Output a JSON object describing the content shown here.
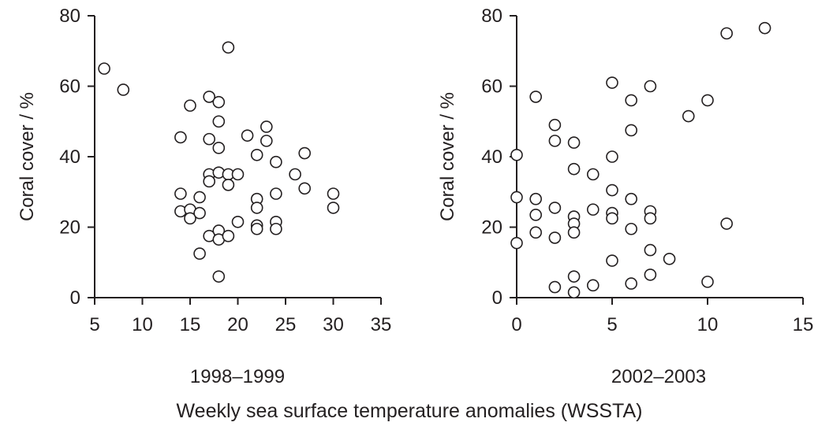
{
  "chart_data": [
    {
      "type": "scatter",
      "panel_label": "1998–1999",
      "ylabel": "Coral cover / %",
      "xlim": [
        5,
        35
      ],
      "ylim": [
        0,
        80
      ],
      "x_ticks": [
        5,
        10,
        15,
        20,
        25,
        30,
        35
      ],
      "y_ticks": [
        0,
        20,
        40,
        60,
        80
      ],
      "points": [
        {
          "x": 6,
          "y": 65
        },
        {
          "x": 8,
          "y": 59
        },
        {
          "x": 14,
          "y": 45.5
        },
        {
          "x": 14,
          "y": 29.5
        },
        {
          "x": 14,
          "y": 24.5
        },
        {
          "x": 15,
          "y": 54.5
        },
        {
          "x": 15,
          "y": 25
        },
        {
          "x": 15,
          "y": 22.5
        },
        {
          "x": 16,
          "y": 28.5
        },
        {
          "x": 16,
          "y": 24
        },
        {
          "x": 16,
          "y": 12.5
        },
        {
          "x": 17,
          "y": 57
        },
        {
          "x": 17,
          "y": 45
        },
        {
          "x": 17,
          "y": 35
        },
        {
          "x": 17,
          "y": 33
        },
        {
          "x": 17,
          "y": 17.5
        },
        {
          "x": 18,
          "y": 55.5
        },
        {
          "x": 18,
          "y": 50
        },
        {
          "x": 18,
          "y": 42.5
        },
        {
          "x": 18,
          "y": 35.5
        },
        {
          "x": 18,
          "y": 19
        },
        {
          "x": 18,
          "y": 16.5
        },
        {
          "x": 18,
          "y": 6
        },
        {
          "x": 19,
          "y": 71
        },
        {
          "x": 19,
          "y": 35
        },
        {
          "x": 19,
          "y": 32
        },
        {
          "x": 19,
          "y": 17.5
        },
        {
          "x": 20,
          "y": 35
        },
        {
          "x": 20,
          "y": 21.5
        },
        {
          "x": 21,
          "y": 46
        },
        {
          "x": 22,
          "y": 40.5
        },
        {
          "x": 22,
          "y": 28
        },
        {
          "x": 22,
          "y": 25.5
        },
        {
          "x": 22,
          "y": 20.5
        },
        {
          "x": 22,
          "y": 19.5
        },
        {
          "x": 23,
          "y": 48.5
        },
        {
          "x": 23,
          "y": 44.5
        },
        {
          "x": 24,
          "y": 38.5
        },
        {
          "x": 24,
          "y": 29.5
        },
        {
          "x": 24,
          "y": 21.5
        },
        {
          "x": 24,
          "y": 19.5
        },
        {
          "x": 26,
          "y": 35
        },
        {
          "x": 27,
          "y": 41
        },
        {
          "x": 27,
          "y": 31
        },
        {
          "x": 30,
          "y": 29.5
        },
        {
          "x": 30,
          "y": 25.5
        }
      ]
    },
    {
      "type": "scatter",
      "panel_label": "2002–2003",
      "ylabel": "Coral cover / %",
      "xlim": [
        0,
        15
      ],
      "ylim": [
        0,
        80
      ],
      "x_ticks": [
        0,
        5,
        10,
        15
      ],
      "y_ticks": [
        0,
        20,
        40,
        60,
        80
      ],
      "points": [
        {
          "x": 0,
          "y": 40.5
        },
        {
          "x": 0,
          "y": 28.5
        },
        {
          "x": 0,
          "y": 15.5
        },
        {
          "x": 1,
          "y": 57
        },
        {
          "x": 1,
          "y": 28
        },
        {
          "x": 1,
          "y": 23.5
        },
        {
          "x": 1,
          "y": 18.5
        },
        {
          "x": 2,
          "y": 49
        },
        {
          "x": 2,
          "y": 44.5
        },
        {
          "x": 2,
          "y": 25.5
        },
        {
          "x": 2,
          "y": 17
        },
        {
          "x": 2,
          "y": 3
        },
        {
          "x": 3,
          "y": 44
        },
        {
          "x": 3,
          "y": 36.5
        },
        {
          "x": 3,
          "y": 23
        },
        {
          "x": 3,
          "y": 21
        },
        {
          "x": 3,
          "y": 18.5
        },
        {
          "x": 3,
          "y": 6
        },
        {
          "x": 3,
          "y": 1.5
        },
        {
          "x": 4,
          "y": 35
        },
        {
          "x": 4,
          "y": 25
        },
        {
          "x": 4,
          "y": 3.5
        },
        {
          "x": 5,
          "y": 61
        },
        {
          "x": 5,
          "y": 40
        },
        {
          "x": 5,
          "y": 30.5
        },
        {
          "x": 5,
          "y": 24
        },
        {
          "x": 5,
          "y": 22.5
        },
        {
          "x": 5,
          "y": 10.5
        },
        {
          "x": 6,
          "y": 56
        },
        {
          "x": 6,
          "y": 47.5
        },
        {
          "x": 6,
          "y": 28
        },
        {
          "x": 6,
          "y": 19.5
        },
        {
          "x": 6,
          "y": 4
        },
        {
          "x": 7,
          "y": 60
        },
        {
          "x": 7,
          "y": 24.5
        },
        {
          "x": 7,
          "y": 22.5
        },
        {
          "x": 7,
          "y": 13.5
        },
        {
          "x": 7,
          "y": 6.5
        },
        {
          "x": 8,
          "y": 11
        },
        {
          "x": 9,
          "y": 51.5
        },
        {
          "x": 10,
          "y": 56
        },
        {
          "x": 10,
          "y": 4.5
        },
        {
          "x": 11,
          "y": 75
        },
        {
          "x": 11,
          "y": 21
        },
        {
          "x": 13,
          "y": 76.5
        }
      ]
    }
  ],
  "common_xlabel": "Weekly sea surface temperature anomalies (WSSTA)"
}
